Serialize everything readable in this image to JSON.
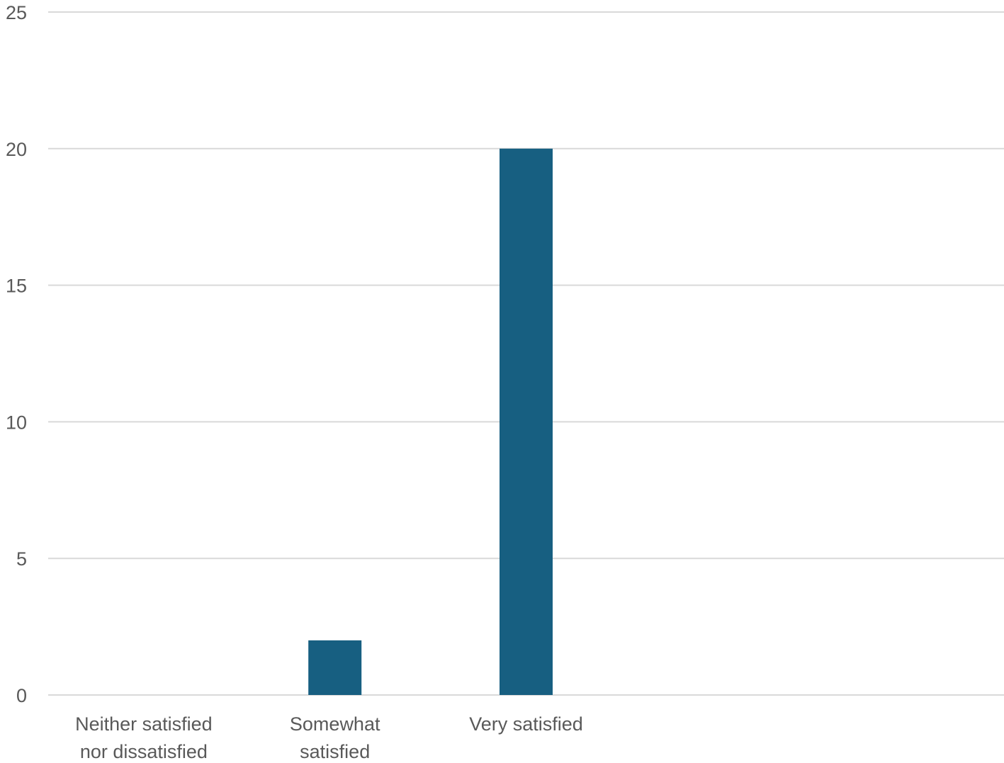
{
  "chart_data": {
    "type": "bar",
    "categories": [
      [
        "Neither satisfied",
        "nor dissatisfied"
      ],
      [
        "Somewhat",
        "satisfied"
      ],
      [
        "Very satisfied"
      ],
      [],
      []
    ],
    "values": [
      0,
      2,
      20,
      0,
      0
    ],
    "yticks": [
      "0",
      "5",
      "10",
      "15",
      "20",
      "25"
    ],
    "ylim": [
      0,
      25
    ],
    "grid": true,
    "bar_color": "#175f81",
    "grid_color": "#d9d9d9",
    "text_color": "#595959"
  }
}
